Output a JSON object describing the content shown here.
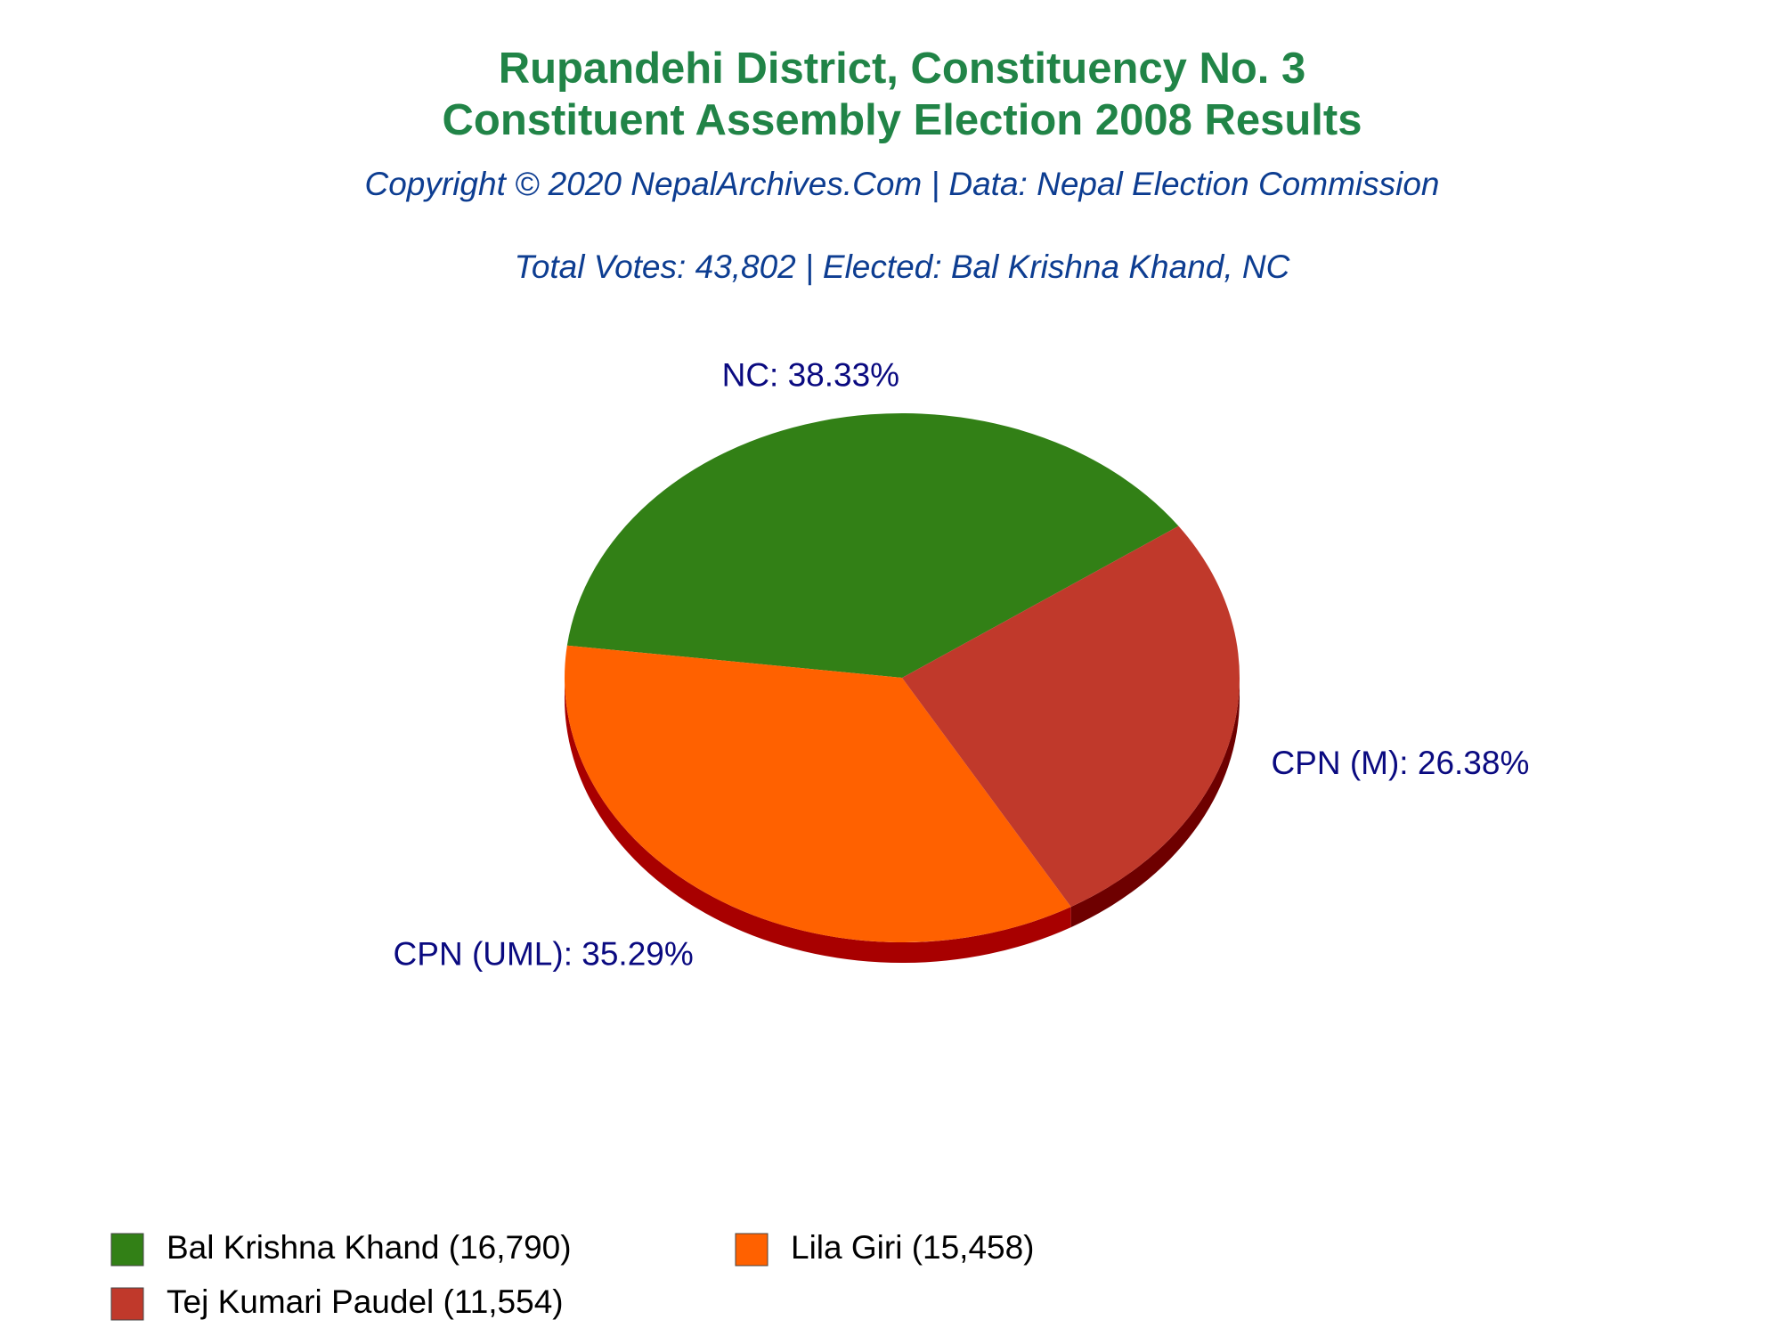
{
  "chart_data": {
    "type": "pie",
    "title": [
      "Rupandehi District, Constituency No. 3",
      "Constituent Assembly Election 2008 Results"
    ],
    "subtitle": "Copyright © 2020 NepalArchives.Com | Data: Nepal Election Commission",
    "annotation": "Total Votes: 43,802 | Elected: Bal Krishna Khand, NC",
    "categories": [
      "Bal Krishna Khand (16,790)",
      "Lila Giri (15,458)",
      "Tej Kumari Paudel (11,554)"
    ],
    "values": [
      38.33,
      35.29,
      26.38
    ],
    "value_labels": [
      "NC: 38.33%",
      "CPN (UML): 35.29%",
      "CPN (M): 26.38%"
    ],
    "colors": [
      "#328016",
      "#ff6100",
      "#c0392b"
    ],
    "side_colors": [
      "#1e5a0c",
      "#a80000",
      "#6e0000"
    ]
  }
}
